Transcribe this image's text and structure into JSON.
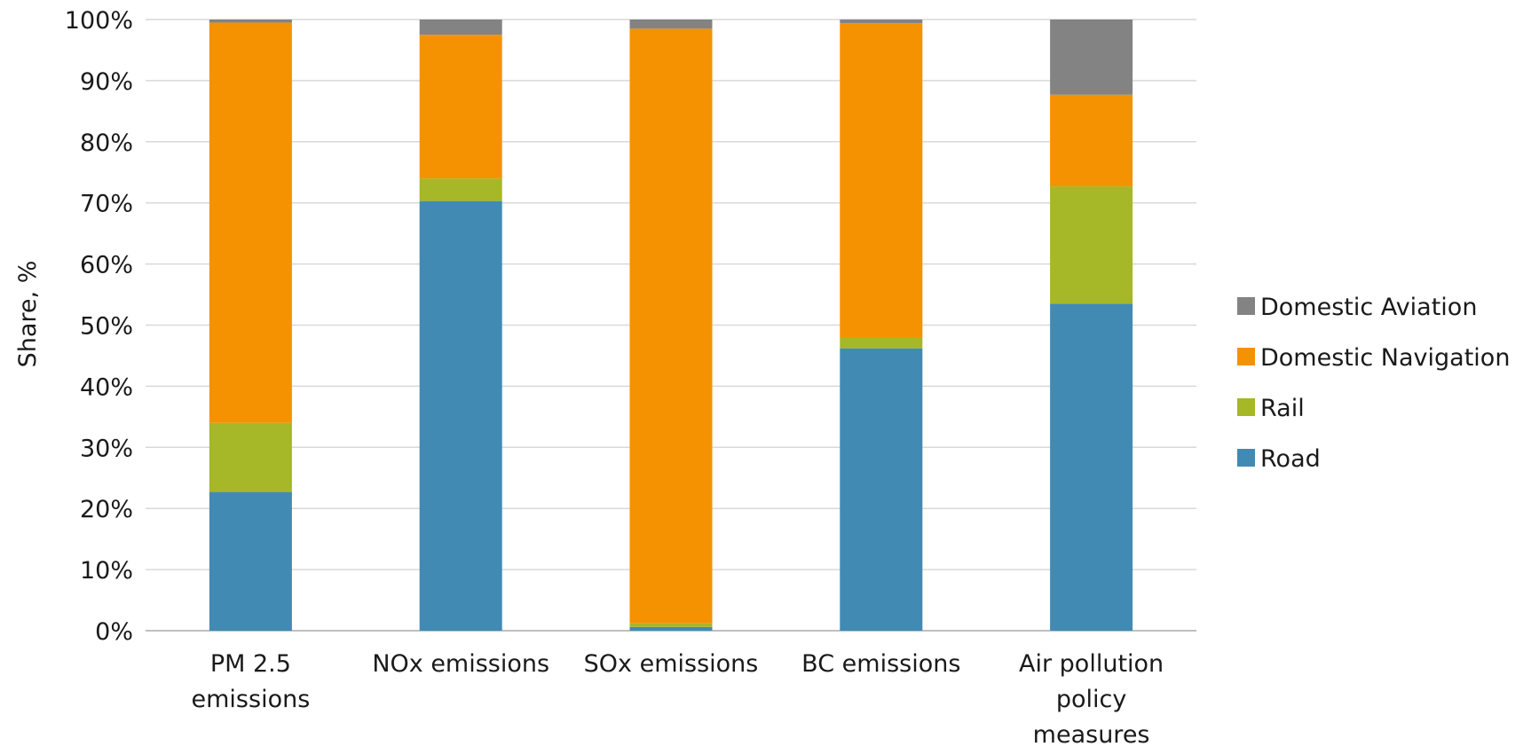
{
  "chart_data": {
    "type": "bar",
    "stacked": true,
    "normalized": true,
    "categories": [
      [
        "PM 2.5",
        "emissions"
      ],
      [
        "NOx emissions"
      ],
      [
        "SOx emissions"
      ],
      [
        "BC emissions"
      ],
      [
        "Air pollution",
        "policy",
        "measures"
      ]
    ],
    "series": [
      {
        "name": "Road",
        "color": "#418ab3",
        "values": [
          22.7,
          70.3,
          0.6,
          46.2,
          53.5
        ]
      },
      {
        "name": "Rail",
        "color": "#a6b727",
        "values": [
          11.3,
          3.7,
          0.6,
          1.7,
          19.2
        ]
      },
      {
        "name": "Domestic Navigation",
        "color": "#f59201",
        "values": [
          65.5,
          23.5,
          97.3,
          51.5,
          15.0
        ]
      },
      {
        "name": "Domestic Aviation",
        "color": "#838383",
        "values": [
          0.5,
          2.5,
          1.5,
          0.6,
          12.3
        ]
      }
    ],
    "title": "",
    "xlabel": "",
    "ylabel": "Share, %",
    "ylim": [
      0,
      100
    ],
    "yticks": [
      "0%",
      "10%",
      "20%",
      "30%",
      "40%",
      "50%",
      "60%",
      "70%",
      "80%",
      "90%",
      "100%"
    ],
    "legend": {
      "position": "right",
      "order": [
        "Domestic Aviation",
        "Domestic Navigation",
        "Rail",
        "Road"
      ]
    },
    "grid": "horizontal",
    "colors": {
      "grid": "#d9d9d9",
      "axis": "#bfbfbf",
      "text": "#1a1a1a"
    }
  }
}
